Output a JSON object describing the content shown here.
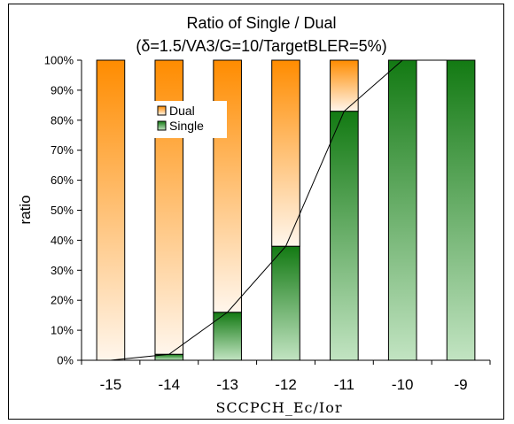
{
  "chart_data": {
    "type": "bar",
    "stacked": true,
    "percent": true,
    "title": "Ratio of Single / Dual",
    "subtitle": "(δ=1.5/VA3/G=10/TargetBLER=5%)",
    "xlabel": "SCCPCH_Ec/Ior",
    "ylabel": "ratio",
    "categories": [
      "-15",
      "-14",
      "-13",
      "-12",
      "-11",
      "-10",
      "-9"
    ],
    "ylim": [
      0,
      100
    ],
    "yticks": [
      "0%",
      "10%",
      "20%",
      "30%",
      "40%",
      "50%",
      "60%",
      "70%",
      "80%",
      "90%",
      "100%"
    ],
    "series": [
      {
        "name": "Single",
        "values": [
          0,
          2,
          16,
          38,
          83,
          100,
          100
        ],
        "color_top": "#137a13",
        "color_bottom": "#c2e4c2"
      },
      {
        "name": "Dual",
        "values": [
          100,
          98,
          84,
          62,
          17,
          0,
          0
        ],
        "color_top": "#ff8c00",
        "color_bottom": "#fff6ec"
      }
    ],
    "legend": {
      "placement": "top-left",
      "entries": [
        "Dual",
        "Single"
      ]
    },
    "trend_line": "Single",
    "grid": false
  }
}
